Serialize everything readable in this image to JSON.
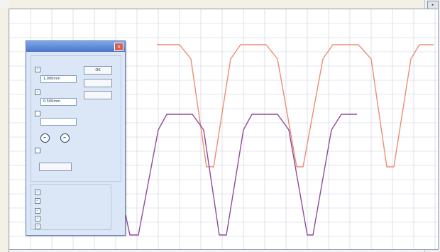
{
  "colors": {
    "orange_curve": "#ec8e73",
    "purple_curve": "#8f4c9c",
    "grid": "#c7cfdb",
    "dialog_title": "#5a82d1"
  },
  "ruler": {
    "top_ticks": [
      "",
      "",
      "",
      "",
      "",
      "",
      "",
      "",
      "",
      "",
      "",
      ""
    ],
    "left_ticks": [
      "",
      "",
      "",
      "",
      "",
      "",
      "",
      ""
    ]
  },
  "dialog": {
    "title": "",
    "group1_label": "",
    "check1_label": "",
    "value1": "1,000mm",
    "check2_label": "",
    "value2": "0.500mm",
    "check3_label": "",
    "value3": "",
    "check4_label": "",
    "ok_label": "OK",
    "cancel_label": "",
    "help_label": "",
    "apply_label": "",
    "group2_label": "",
    "check5_label": "",
    "check6_label": "",
    "check7_label": "",
    "check8_label": "",
    "check9_label": ""
  },
  "icons": {
    "left_round": "round-icon",
    "right_round": "round-icon",
    "close": "close-icon"
  }
}
